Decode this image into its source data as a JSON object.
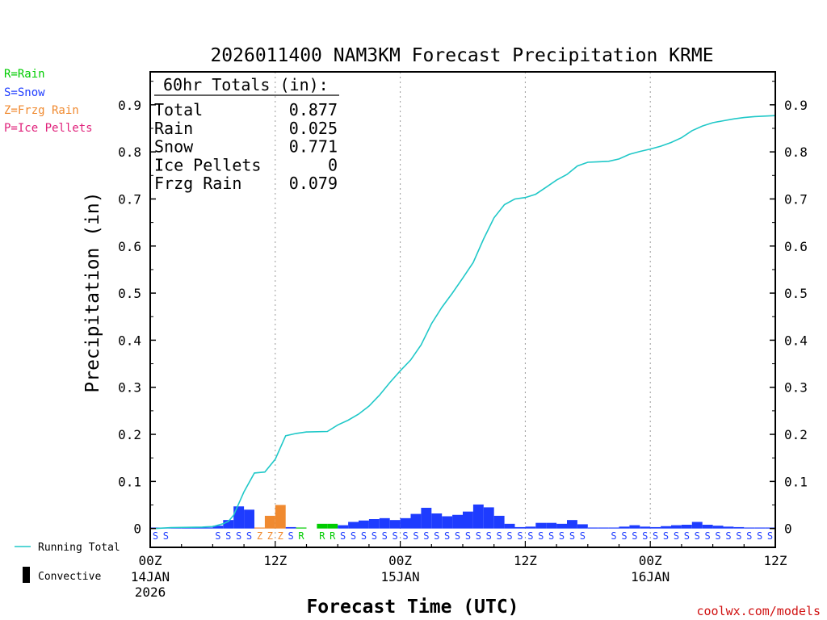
{
  "chart_data": {
    "type": "bar",
    "title": "2026011400 NAM3KM Forecast Precipitation KRME",
    "ylabel": "Precipitation (in)",
    "xlabel": "Forecast Time (UTC)",
    "ylim": [
      -0.04,
      0.97
    ],
    "xlim_hours": [
      0,
      60
    ],
    "yticks": [
      "0",
      "0.1",
      "0.2",
      "0.3",
      "0.4",
      "0.5",
      "0.6",
      "0.7",
      "0.8",
      "0.9"
    ],
    "xticks": [
      {
        "hour": 0,
        "l1": "00Z",
        "l2": "14JAN",
        "l3": "2026"
      },
      {
        "hour": 12,
        "l1": "12Z",
        "l2": "",
        "l3": ""
      },
      {
        "hour": 24,
        "l1": "00Z",
        "l2": "15JAN",
        "l3": ""
      },
      {
        "hour": 36,
        "l1": "12Z",
        "l2": "",
        "l3": ""
      },
      {
        "hour": 48,
        "l1": "00Z",
        "l2": "16JAN",
        "l3": ""
      },
      {
        "hour": 60,
        "l1": "12Z",
        "l2": "",
        "l3": ""
      }
    ],
    "gridlines_hours": [
      12,
      24,
      36,
      48
    ],
    "colors": {
      "rain": "#00cc00",
      "snow": "#1e3cff",
      "frzg": "#f08a30",
      "ice": "#e0207a",
      "total": "#20c8c8"
    },
    "hourly": [
      {
        "hour": 1,
        "value": 0.001,
        "type": "S"
      },
      {
        "hour": 2,
        "value": 0.001,
        "type": "S"
      },
      {
        "hour": 3,
        "value": 0.001,
        "type": ""
      },
      {
        "hour": 4,
        "value": 0.001,
        "type": ""
      },
      {
        "hour": 5,
        "value": 0.001,
        "type": ""
      },
      {
        "hour": 6,
        "value": 0.002,
        "type": ""
      },
      {
        "hour": 7,
        "value": 0.006,
        "type": "S"
      },
      {
        "hour": 8,
        "value": 0.018,
        "type": "S"
      },
      {
        "hour": 9,
        "value": 0.047,
        "type": "S"
      },
      {
        "hour": 10,
        "value": 0.04,
        "type": "S"
      },
      {
        "hour": 11,
        "value": 0.002,
        "type": "Z"
      },
      {
        "hour": 12,
        "value": 0.027,
        "type": "Z"
      },
      {
        "hour": 13,
        "value": 0.05,
        "type": "Z"
      },
      {
        "hour": 14,
        "value": 0.003,
        "type": "S"
      },
      {
        "hour": 15,
        "value": 0.002,
        "type": "R"
      },
      {
        "hour": 16,
        "value": 0.0,
        "type": ""
      },
      {
        "hour": 17,
        "value": 0.01,
        "type": "R"
      },
      {
        "hour": 18,
        "value": 0.01,
        "type": "R"
      },
      {
        "hour": 19,
        "value": 0.007,
        "type": "S"
      },
      {
        "hour": 20,
        "value": 0.014,
        "type": "S"
      },
      {
        "hour": 21,
        "value": 0.017,
        "type": "S"
      },
      {
        "hour": 22,
        "value": 0.02,
        "type": "S"
      },
      {
        "hour": 23,
        "value": 0.022,
        "type": "S"
      },
      {
        "hour": 24,
        "value": 0.018,
        "type": "S"
      },
      {
        "hour": 25,
        "value": 0.022,
        "type": "S"
      },
      {
        "hour": 26,
        "value": 0.031,
        "type": "S"
      },
      {
        "hour": 27,
        "value": 0.044,
        "type": "S"
      },
      {
        "hour": 28,
        "value": 0.032,
        "type": "S"
      },
      {
        "hour": 29,
        "value": 0.026,
        "type": "S"
      },
      {
        "hour": 30,
        "value": 0.029,
        "type": "S"
      },
      {
        "hour": 31,
        "value": 0.036,
        "type": "S"
      },
      {
        "hour": 32,
        "value": 0.051,
        "type": "S"
      },
      {
        "hour": 33,
        "value": 0.045,
        "type": "S"
      },
      {
        "hour": 34,
        "value": 0.027,
        "type": "S"
      },
      {
        "hour": 35,
        "value": 0.01,
        "type": "S"
      },
      {
        "hour": 36,
        "value": 0.003,
        "type": "S"
      },
      {
        "hour": 37,
        "value": 0.004,
        "type": "S"
      },
      {
        "hour": 38,
        "value": 0.012,
        "type": "S"
      },
      {
        "hour": 39,
        "value": 0.012,
        "type": "S"
      },
      {
        "hour": 40,
        "value": 0.01,
        "type": "S"
      },
      {
        "hour": 41,
        "value": 0.018,
        "type": "S"
      },
      {
        "hour": 42,
        "value": 0.009,
        "type": "S"
      },
      {
        "hour": 43,
        "value": 0.001,
        "type": ""
      },
      {
        "hour": 44,
        "value": 0.001,
        "type": ""
      },
      {
        "hour": 45,
        "value": 0.002,
        "type": "S"
      },
      {
        "hour": 46,
        "value": 0.004,
        "type": "S"
      },
      {
        "hour": 47,
        "value": 0.007,
        "type": "S"
      },
      {
        "hour": 48,
        "value": 0.004,
        "type": "S"
      },
      {
        "hour": 49,
        "value": 0.003,
        "type": "S"
      },
      {
        "hour": 50,
        "value": 0.005,
        "type": "S"
      },
      {
        "hour": 51,
        "value": 0.007,
        "type": "S"
      },
      {
        "hour": 52,
        "value": 0.008,
        "type": "S"
      },
      {
        "hour": 53,
        "value": 0.014,
        "type": "S"
      },
      {
        "hour": 54,
        "value": 0.008,
        "type": "S"
      },
      {
        "hour": 55,
        "value": 0.006,
        "type": "S"
      },
      {
        "hour": 56,
        "value": 0.004,
        "type": "S"
      },
      {
        "hour": 57,
        "value": 0.003,
        "type": "S"
      },
      {
        "hour": 58,
        "value": 0.002,
        "type": "S"
      },
      {
        "hour": 59,
        "value": 0.002,
        "type": "S"
      },
      {
        "hour": 60,
        "value": 0.001,
        "type": "S"
      }
    ],
    "running_total": [
      [
        0.5,
        0.0
      ],
      [
        2,
        0.002
      ],
      [
        5,
        0.003
      ],
      [
        6,
        0.004
      ],
      [
        7,
        0.01
      ],
      [
        7.5,
        0.015
      ],
      [
        8,
        0.028
      ],
      [
        9,
        0.078
      ],
      [
        10,
        0.118
      ],
      [
        11,
        0.12
      ],
      [
        12,
        0.147
      ],
      [
        13,
        0.197
      ],
      [
        14,
        0.202
      ],
      [
        15,
        0.205
      ],
      [
        17,
        0.206
      ],
      [
        18,
        0.22
      ],
      [
        19,
        0.23
      ],
      [
        20,
        0.243
      ],
      [
        21,
        0.26
      ],
      [
        22,
        0.283
      ],
      [
        23,
        0.31
      ],
      [
        24,
        0.335
      ],
      [
        25,
        0.358
      ],
      [
        26,
        0.39
      ],
      [
        27,
        0.435
      ],
      [
        28,
        0.47
      ],
      [
        29,
        0.5
      ],
      [
        30,
        0.532
      ],
      [
        31,
        0.565
      ],
      [
        32,
        0.615
      ],
      [
        33,
        0.66
      ],
      [
        34,
        0.688
      ],
      [
        35,
        0.7
      ],
      [
        36,
        0.703
      ],
      [
        37,
        0.71
      ],
      [
        38,
        0.725
      ],
      [
        39,
        0.74
      ],
      [
        40,
        0.752
      ],
      [
        41,
        0.77
      ],
      [
        42,
        0.778
      ],
      [
        43,
        0.779
      ],
      [
        44,
        0.78
      ],
      [
        45,
        0.785
      ],
      [
        46,
        0.795
      ],
      [
        47,
        0.801
      ],
      [
        48,
        0.806
      ],
      [
        49,
        0.812
      ],
      [
        50,
        0.82
      ],
      [
        51,
        0.83
      ],
      [
        52,
        0.845
      ],
      [
        53,
        0.855
      ],
      [
        54,
        0.862
      ],
      [
        55,
        0.866
      ],
      [
        56,
        0.87
      ],
      [
        57,
        0.873
      ],
      [
        58,
        0.875
      ],
      [
        59,
        0.876
      ],
      [
        60,
        0.877
      ]
    ],
    "totals_box": {
      "heading": "60hr Totals (in):",
      "rows": [
        {
          "label": "Total",
          "value": "0.877"
        },
        {
          "label": "Rain",
          "value": "0.025"
        },
        {
          "label": "Snow",
          "value": "0.771"
        },
        {
          "label": "Ice Pellets",
          "value": "0"
        },
        {
          "label": "Frzg Rain",
          "value": "0.079"
        }
      ]
    },
    "type_legend": [
      {
        "text": "R=Rain",
        "key": "rain"
      },
      {
        "text": "S=Snow",
        "key": "snow"
      },
      {
        "text": "Z=Frzg Rain",
        "key": "frzg"
      },
      {
        "text": "P=Ice Pellets",
        "key": "ice"
      }
    ],
    "line_legend": {
      "running_total": "Running Total",
      "convective": "Convective"
    },
    "credit": "coolwx.com/models"
  }
}
